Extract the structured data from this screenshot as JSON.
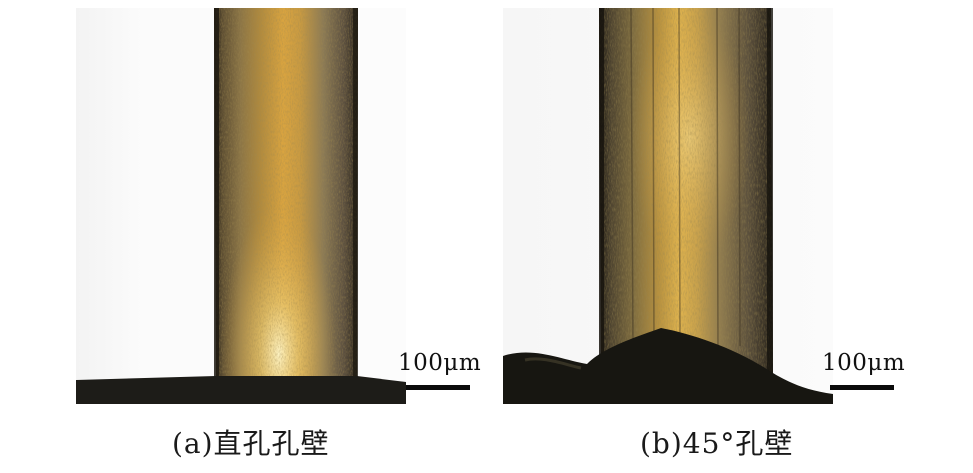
{
  "panels": [
    {
      "id": "a",
      "scale_bar_label": "100μm",
      "caption": "(a)直孔孔壁"
    },
    {
      "id": "b",
      "scale_bar_label": "100μm",
      "caption": "(b)45°孔壁"
    }
  ]
}
